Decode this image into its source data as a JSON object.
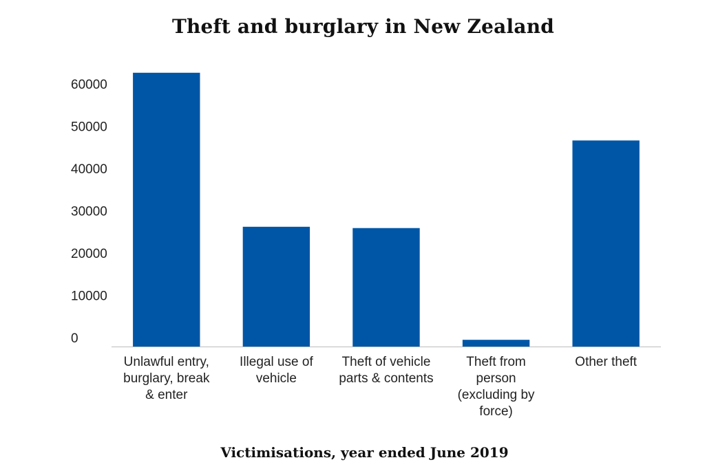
{
  "chart_data": {
    "type": "bar",
    "title": "Theft and burglary in New Zealand",
    "xlabel": "Victimisations, year ended June 2019",
    "ylabel": "",
    "categories": [
      "Unlawful entry, burglary, break & enter",
      "Illegal use of vehicle",
      "Theft of vehicle parts & contents",
      "Theft from person (excluding by force)",
      "Other theft"
    ],
    "category_lines": [
      [
        "Unlawful entry,",
        "burglary, break",
        "& enter"
      ],
      [
        "Illegal use of",
        "vehicle"
      ],
      [
        "Theft of vehicle",
        "parts & contents"
      ],
      [
        "Theft from",
        "person",
        "(excluding by",
        "force)"
      ],
      [
        "Other theft"
      ]
    ],
    "values": [
      64700,
      28300,
      28000,
      1600,
      48700
    ],
    "ylim": [
      0,
      65000
    ],
    "yticks": [
      0,
      10000,
      20000,
      30000,
      40000,
      50000,
      60000
    ],
    "ytick_labels": [
      "0",
      "10000",
      "20000",
      "30000",
      "40000",
      "50000",
      "60000"
    ],
    "grid": false,
    "bar_color": "#0056a6",
    "axis_color": "#bbbbbb"
  }
}
